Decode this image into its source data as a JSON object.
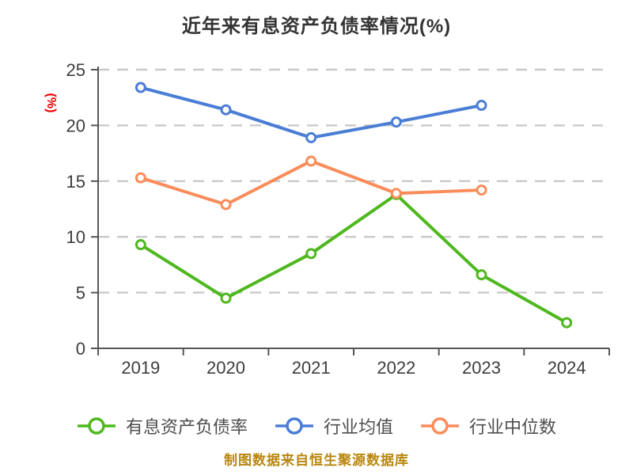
{
  "title": "近年来有息资产负债率情况(%)",
  "footer": "制图数据来自恒生聚源数据库",
  "colors": {
    "green": "#4eb81e",
    "blue": "#4a7dd6",
    "orange": "#fa8c5a",
    "title_text": "#333333",
    "axis_label": "#3d3d3d",
    "axis_line": "#55565a",
    "grid_line": "#c9c9c9",
    "y_unit_label": "#ec0000",
    "legend_text": "#4d4d4d",
    "footer_text": "#b8860b",
    "marker_fill": "#ffffff"
  },
  "chart_data": {
    "type": "line",
    "title": "近年来有息资产负债率情况(%)",
    "xlabel": "",
    "ylabel": "(%)",
    "ylim": [
      0,
      25
    ],
    "ytick_step": 5,
    "ytick_labels": [
      "25",
      "20",
      "15",
      "10",
      "5",
      "0"
    ],
    "grid": "horizontal dashed",
    "legend_position": "bottom",
    "categories": [
      "2019",
      "2020",
      "2021",
      "2022",
      "2023",
      "2024"
    ],
    "series": [
      {
        "name": "有息资产负债率",
        "color": "#4eb81e",
        "marker": "circle-white-fill",
        "values": [
          9.3,
          4.5,
          8.5,
          13.8,
          6.6,
          2.3
        ]
      },
      {
        "name": "行业均值",
        "color": "#4a7dd6",
        "marker": "circle-white-fill",
        "values": [
          23.4,
          21.4,
          18.9,
          20.3,
          21.8,
          null
        ]
      },
      {
        "name": "行业中位数",
        "color": "#fa8c5a",
        "marker": "circle-white-fill",
        "values": [
          15.3,
          12.9,
          16.8,
          13.9,
          14.2,
          null
        ]
      }
    ]
  },
  "legend": {
    "items": [
      {
        "label": "有息资产负债率",
        "color": "#4eb81e"
      },
      {
        "label": "行业均值",
        "color": "#4a7dd6"
      },
      {
        "label": "行业中位数",
        "color": "#fa8c5a"
      }
    ]
  }
}
